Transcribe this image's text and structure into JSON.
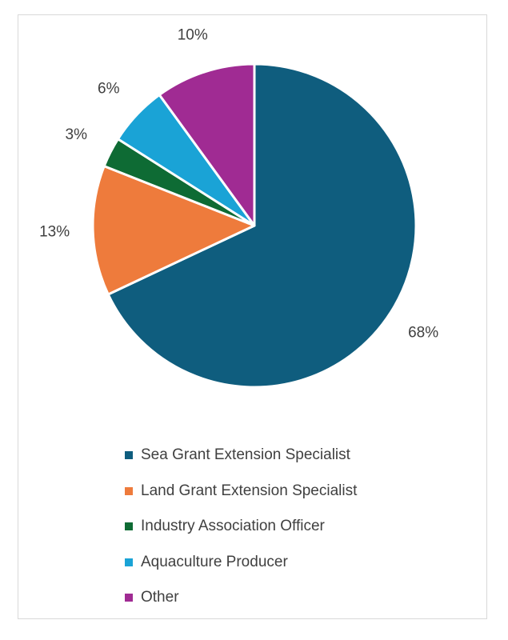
{
  "chart_data": {
    "type": "pie",
    "categories": [
      "Sea Grant Extension Specialist",
      "Land Grant Extension Specialist",
      "Industry Association Officer",
      "Aquaculture Producer",
      "Other"
    ],
    "values": [
      68,
      13,
      3,
      6,
      10
    ],
    "value_labels": [
      "68%",
      "13%",
      "3%",
      "6%",
      "10%"
    ],
    "colors": [
      "#0f5d7e",
      "#ee7b3c",
      "#0e6b34",
      "#1aa3d6",
      "#a02b93"
    ],
    "start": "12 o'clock",
    "direction": "clockwise",
    "legend_position": "bottom"
  }
}
